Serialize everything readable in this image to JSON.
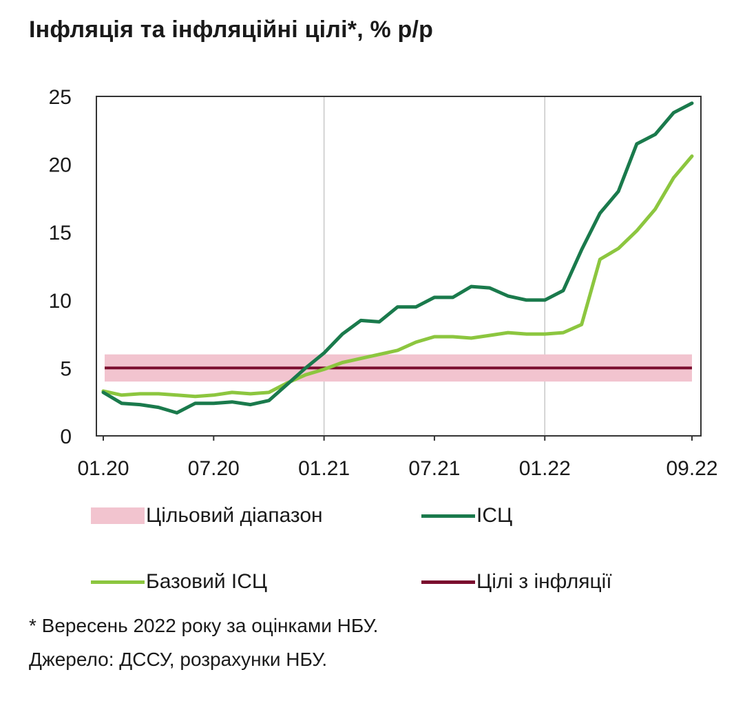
{
  "title": "Інфляція та інфляційні цілі*, % р/р",
  "chart_data": {
    "type": "line",
    "x": [
      "01.20",
      "02.20",
      "03.20",
      "04.20",
      "05.20",
      "06.20",
      "07.20",
      "08.20",
      "09.20",
      "10.20",
      "11.20",
      "12.20",
      "01.21",
      "02.21",
      "03.21",
      "04.21",
      "05.21",
      "06.21",
      "07.21",
      "08.21",
      "09.21",
      "10.21",
      "11.21",
      "12.21",
      "01.22",
      "02.22",
      "03.22",
      "04.22",
      "05.22",
      "06.22",
      "07.22",
      "08.22",
      "09.22"
    ],
    "x_tick_labels": [
      "01.20",
      "07.20",
      "01.21",
      "07.21",
      "01.22",
      "09.22"
    ],
    "y_ticks": [
      0,
      5,
      10,
      15,
      20,
      25
    ],
    "ylim": [
      0,
      25
    ],
    "grid": "vertical at 01.21 and 01.22",
    "series": [
      {
        "name": "ІСЦ",
        "color": "#1a7a4c",
        "values": [
          3.2,
          2.4,
          2.3,
          2.1,
          1.7,
          2.4,
          2.4,
          2.5,
          2.3,
          2.6,
          3.8,
          5.0,
          6.1,
          7.5,
          8.5,
          8.4,
          9.5,
          9.5,
          10.2,
          10.2,
          11.0,
          10.9,
          10.3,
          10.0,
          10.0,
          10.7,
          13.7,
          16.4,
          18.0,
          21.5,
          22.2,
          23.8,
          24.5
        ]
      },
      {
        "name": "Базовий ІСЦ",
        "color": "#8cc63f",
        "values": [
          3.3,
          3.0,
          3.1,
          3.1,
          3.0,
          2.9,
          3.0,
          3.2,
          3.1,
          3.2,
          3.9,
          4.5,
          4.9,
          5.4,
          5.7,
          6.0,
          6.3,
          6.9,
          7.3,
          7.3,
          7.2,
          7.4,
          7.6,
          7.5,
          7.5,
          7.6,
          8.2,
          13.0,
          13.8,
          15.1,
          16.7,
          19.0,
          20.6
        ]
      }
    ],
    "target": {
      "name": "Цілі з інфляції",
      "color": "#7a0c2e",
      "value": 5
    },
    "target_band": {
      "name": "Цільовий діапазон",
      "color": "#f2c4cf",
      "low": 4,
      "high": 6
    }
  },
  "legend": {
    "band": "Цільовий діапазон",
    "cpi": "ІСЦ",
    "core": "Базовий ІСЦ",
    "target": "Цілі з інфляції"
  },
  "notes": {
    "footnote": "* Вересень 2022 року за оцінками НБУ.",
    "source": "Джерело: ДССУ, розрахунки НБУ."
  }
}
